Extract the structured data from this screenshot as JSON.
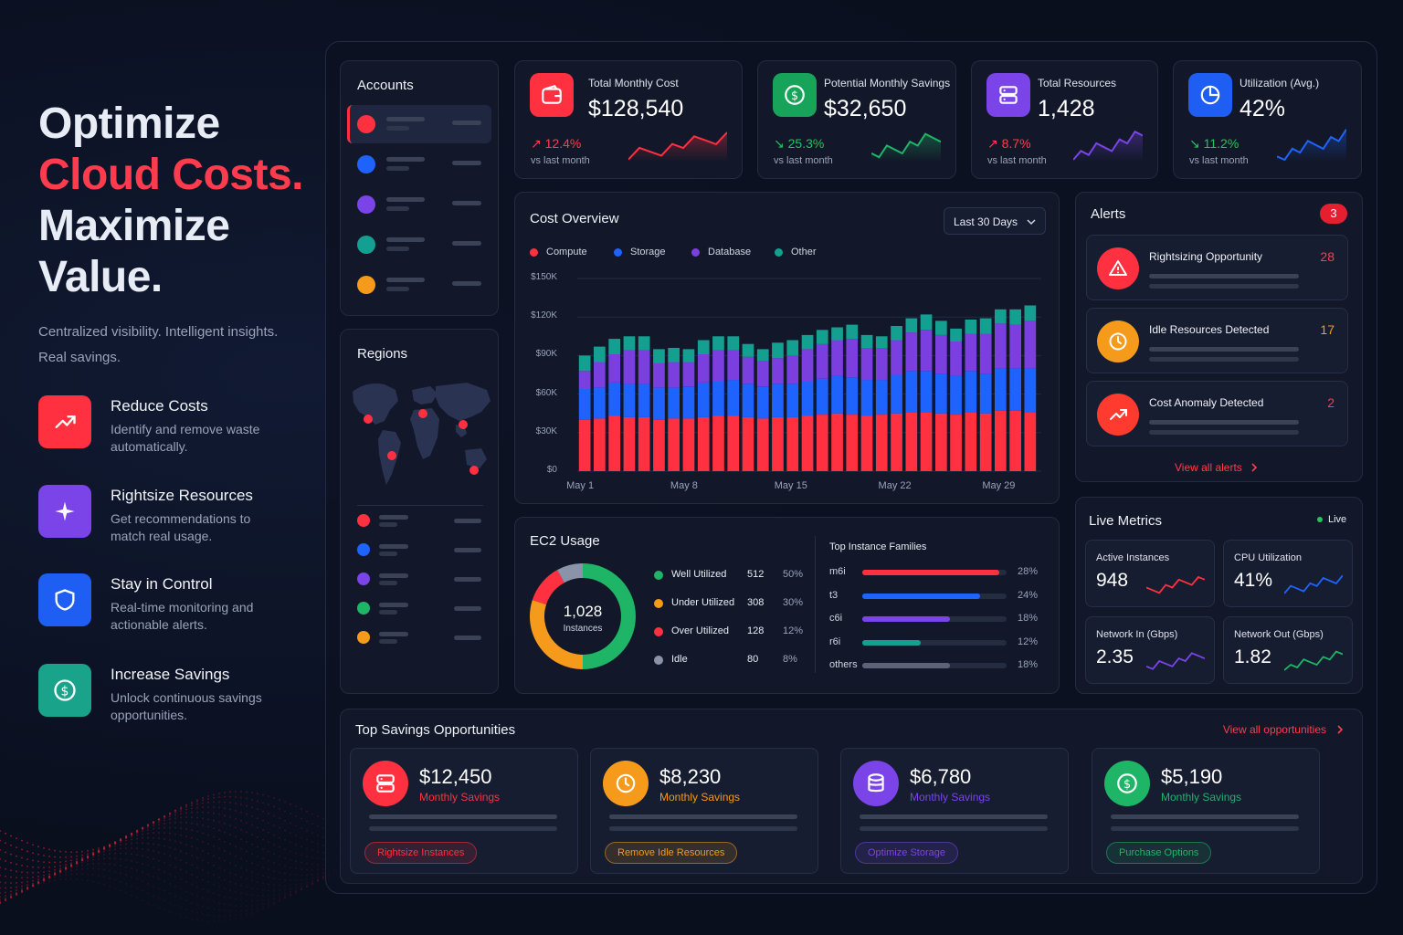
{
  "hero": {
    "title_line1": "Optimize",
    "title_line2": "Cloud Costs.",
    "title_line3": "Maximize",
    "title_line4": "Value.",
    "subtitle": "Centralized visibility. Intelligent insights. Real savings."
  },
  "features": [
    {
      "title": "Reduce Costs",
      "desc": "Identify and remove waste automatically.",
      "icon": "trend-up-icon",
      "color": "#ff3040"
    },
    {
      "title": "Rightsize Resources",
      "desc": "Get recommendations to match real usage.",
      "icon": "sparkle-icon",
      "color": "#7b44e8"
    },
    {
      "title": "Stay in Control",
      "desc": "Real-time monitoring and actionable alerts.",
      "icon": "shield-icon",
      "color": "#1f5ef2"
    },
    {
      "title": "Increase Savings",
      "desc": "Unlock continuous savings opportunities.",
      "icon": "dollar-icon",
      "color": "#18a38a"
    }
  ],
  "accounts": {
    "title": "Accounts",
    "dot_colors": [
      "#ff3040",
      "#1f63ff",
      "#7b44e8",
      "#14a090",
      "#f59a1a"
    ]
  },
  "regions": {
    "title": "Regions",
    "dot_colors": [
      "#ff3040",
      "#1f63ff",
      "#7b44e8",
      "#1fb567",
      "#f59a1a"
    ]
  },
  "kpis": [
    {
      "label": "Total Monthly Cost",
      "value": "$128,540",
      "change": "↗ 12.4%",
      "vs": "vs last month",
      "color": "#ff3b4e",
      "icon": "wallet-icon"
    },
    {
      "label": "Potential Monthly Savings",
      "value": "$32,650",
      "change": "↘ 25.3%",
      "vs": "vs last month",
      "color": "#22c55e",
      "icon": "dollar-icon"
    },
    {
      "label": "Total Resources",
      "value": "1,428",
      "change": "↗ 8.7%",
      "vs": "vs last month",
      "color": "#ff3b4e",
      "icon": "server-icon"
    },
    {
      "label": "Utilization (Avg.)",
      "value": "42%",
      "change": "↘ 11.2%",
      "vs": "vs last month",
      "color": "#22c55e",
      "icon": "pie-icon"
    }
  ],
  "cost_overview": {
    "title": "Cost Overview",
    "range_label": "Last 30 Days",
    "legend": [
      {
        "name": "Compute",
        "color": "#ff3040"
      },
      {
        "name": "Storage",
        "color": "#1f63ff"
      },
      {
        "name": "Database",
        "color": "#7b3fe0"
      },
      {
        "name": "Other",
        "color": "#14a090"
      }
    ],
    "y_ticks": [
      "$150K",
      "$120K",
      "$90K",
      "$60K",
      "$30K",
      "$0"
    ],
    "x_ticks": [
      "May 1",
      "May 8",
      "May 15",
      "May 22",
      "May 29"
    ]
  },
  "chart_data": {
    "type": "bar",
    "stacked": true,
    "x": [
      "May 1",
      "May 2",
      "May 3",
      "May 4",
      "May 5",
      "May 6",
      "May 7",
      "May 8",
      "May 9",
      "May 10",
      "May 11",
      "May 12",
      "May 13",
      "May 14",
      "May 15",
      "May 16",
      "May 17",
      "May 18",
      "May 19",
      "May 20",
      "May 21",
      "May 22",
      "May 23",
      "May 24",
      "May 25",
      "May 26",
      "May 27",
      "May 28",
      "May 29",
      "May 30",
      "May 31"
    ],
    "series": [
      {
        "name": "Compute",
        "values": [
          40,
          41,
          43,
          42,
          42,
          40,
          41,
          41,
          42,
          43,
          43,
          42,
          41,
          42,
          42,
          43,
          44,
          45,
          44,
          43,
          44,
          45,
          46,
          46,
          45,
          44,
          46,
          45,
          47,
          47,
          46
        ]
      },
      {
        "name": "Storage",
        "values": [
          24,
          24,
          26,
          26,
          26,
          25,
          24,
          25,
          27,
          27,
          28,
          26,
          25,
          26,
          26,
          27,
          28,
          29,
          29,
          28,
          27,
          30,
          32,
          32,
          31,
          30,
          32,
          31,
          33,
          33,
          34
        ]
      },
      {
        "name": "Database",
        "values": [
          14,
          20,
          22,
          26,
          26,
          19,
          20,
          19,
          22,
          24,
          23,
          21,
          20,
          20,
          22,
          25,
          27,
          28,
          30,
          25,
          25,
          27,
          30,
          32,
          30,
          27,
          29,
          31,
          35,
          34,
          37
        ]
      },
      {
        "name": "Other",
        "values": [
          12,
          12,
          12,
          11,
          11,
          11,
          11,
          10,
          11,
          11,
          11,
          10,
          9,
          12,
          12,
          11,
          11,
          10,
          11,
          10,
          9,
          11,
          11,
          12,
          11,
          10,
          11,
          12,
          11,
          12,
          12
        ]
      }
    ],
    "ylim": [
      0,
      150
    ],
    "y_unit": "$K",
    "grid": true,
    "legend_position": "top"
  },
  "ec2": {
    "title": "EC2 Usage",
    "total": "1,028",
    "total_label": "Instances",
    "rows": [
      {
        "name": "Well Utilized",
        "count": "512",
        "pct": "50%",
        "color": "#1fb567",
        "value": 50
      },
      {
        "name": "Under Utilized",
        "count": "308",
        "pct": "30%",
        "color": "#f59a1a",
        "value": 30
      },
      {
        "name": "Over Utilized",
        "count": "128",
        "pct": "12%",
        "color": "#ff3040",
        "value": 12
      },
      {
        "name": "Idle",
        "count": "80",
        "pct": "8%",
        "color": "#8a93a8",
        "value": 8
      }
    ],
    "families_title": "Top Instance Families",
    "families": [
      {
        "name": "m6i",
        "pct": "28%",
        "value": 28,
        "color": "#ff3040"
      },
      {
        "name": "t3",
        "pct": "24%",
        "value": 24,
        "color": "#1f63ff"
      },
      {
        "name": "c6i",
        "pct": "18%",
        "value": 18,
        "color": "#7b44e8"
      },
      {
        "name": "r6i",
        "pct": "12%",
        "value": 12,
        "color": "#14a090"
      },
      {
        "name": "others",
        "pct": "18%",
        "value": 18,
        "color": "#5a6378"
      }
    ]
  },
  "alerts": {
    "title": "Alerts",
    "badge": "3",
    "items": [
      {
        "title": "Rightsizing Opportunity",
        "count": "28",
        "color": "#ff3040",
        "icon": "warning-icon"
      },
      {
        "title": "Idle Resources Detected",
        "count": "17",
        "color": "#f59a1a",
        "icon": "clock-icon"
      },
      {
        "title": "Cost Anomaly Detected",
        "count": "2",
        "color": "#ff3b30",
        "icon": "trend-up-icon"
      }
    ],
    "view_all": "View all alerts"
  },
  "live_metrics": {
    "title": "Live Metrics",
    "live_label": "Live",
    "items": [
      {
        "label": "Active Instances",
        "value": "948",
        "color": "#ff3040"
      },
      {
        "label": "CPU Utilization",
        "value": "41%",
        "color": "#1f63ff"
      },
      {
        "label": "Network In (Gbps)",
        "value": "2.35",
        "color": "#7b44e8"
      },
      {
        "label": "Network Out (Gbps)",
        "value": "1.82",
        "color": "#1fb567"
      }
    ]
  },
  "savings": {
    "title": "Top Savings Opportunities",
    "view_all": "View all opportunities",
    "items": [
      {
        "value": "$12,450",
        "sub": "Monthly Savings",
        "action": "Rightsize Instances",
        "color": "#ff3040",
        "icon": "server-icon"
      },
      {
        "value": "$8,230",
        "sub": "Monthly Savings",
        "action": "Remove Idle Resources",
        "color": "#f59a1a",
        "icon": "clock-icon"
      },
      {
        "value": "$6,780",
        "sub": "Monthly Savings",
        "action": "Optimize Storage",
        "color": "#7b44e8",
        "icon": "database-icon"
      },
      {
        "value": "$5,190",
        "sub": "Monthly Savings",
        "action": "Purchase Options",
        "color": "#1fb567",
        "icon": "dollar-icon"
      }
    ]
  }
}
